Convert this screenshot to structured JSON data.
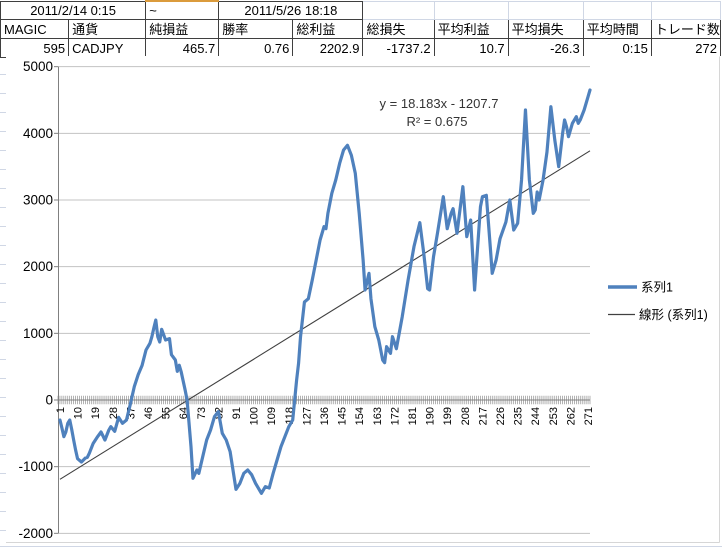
{
  "summary_table": {
    "period_start": "2011/2/14 0:15",
    "period_separator": "~",
    "period_end": "2011/5/26 18:18",
    "columns": [
      "MAGIC",
      "通貨",
      "純損益",
      "勝率",
      "総利益",
      "総損失",
      "平均利益",
      "平均損失",
      "平均時間",
      "トレード数"
    ],
    "values": [
      "595",
      "CADJPY",
      "465.7",
      "0.76",
      "2202.9",
      "-1737.2",
      "10.7",
      "-26.3",
      "0:15",
      "272"
    ]
  },
  "chart_data": {
    "type": "line",
    "title": "",
    "xlabel": "",
    "ylabel": "",
    "ylim": [
      -2000,
      5000
    ],
    "y_tick_step": 1000,
    "x_count": 272,
    "x_tick_labels": [
      1,
      10,
      19,
      28,
      37,
      46,
      55,
      64,
      73,
      82,
      91,
      100,
      109,
      118,
      127,
      136,
      145,
      154,
      163,
      172,
      181,
      190,
      199,
      208,
      217,
      226,
      235,
      244,
      253,
      262,
      271
    ],
    "grid": "horizontal",
    "legend_position": "right",
    "legend": [
      "系列1",
      "線形 (系列1)"
    ],
    "series": [
      {
        "name": "系列1",
        "color": "#4f81bd",
        "note": "cumulative profit curve, values estimated from gridlines at anchor trades",
        "points": [
          [
            1,
            -300
          ],
          [
            2,
            -420
          ],
          [
            3,
            -550
          ],
          [
            4,
            -480
          ],
          [
            5,
            -350
          ],
          [
            6,
            -300
          ],
          [
            7,
            -440
          ],
          [
            8,
            -600
          ],
          [
            9,
            -750
          ],
          [
            10,
            -880
          ],
          [
            12,
            -930
          ],
          [
            14,
            -870
          ],
          [
            15,
            -860
          ],
          [
            16,
            -800
          ],
          [
            18,
            -650
          ],
          [
            20,
            -560
          ],
          [
            22,
            -480
          ],
          [
            24,
            -600
          ],
          [
            26,
            -450
          ],
          [
            27,
            -400
          ],
          [
            29,
            -470
          ],
          [
            31,
            -260
          ],
          [
            33,
            -350
          ],
          [
            35,
            -300
          ],
          [
            36,
            -180
          ],
          [
            37,
            -60
          ],
          [
            39,
            200
          ],
          [
            41,
            380
          ],
          [
            43,
            520
          ],
          [
            45,
            750
          ],
          [
            47,
            850
          ],
          [
            48,
            950
          ],
          [
            49,
            1080
          ],
          [
            50,
            1200
          ],
          [
            51,
            950
          ],
          [
            52,
            870
          ],
          [
            53,
            1060
          ],
          [
            55,
            900
          ],
          [
            57,
            920
          ],
          [
            58,
            680
          ],
          [
            60,
            600
          ],
          [
            61,
            430
          ],
          [
            62,
            520
          ],
          [
            63,
            420
          ],
          [
            65,
            150
          ],
          [
            66,
            0
          ],
          [
            68,
            -700
          ],
          [
            69,
            -1175
          ],
          [
            71,
            -1050
          ],
          [
            72,
            -1100
          ],
          [
            74,
            -850
          ],
          [
            76,
            -600
          ],
          [
            78,
            -450
          ],
          [
            80,
            -250
          ],
          [
            82,
            -175
          ],
          [
            84,
            -500
          ],
          [
            86,
            -600
          ],
          [
            88,
            -775
          ],
          [
            91,
            -1340
          ],
          [
            93,
            -1250
          ],
          [
            95,
            -1100
          ],
          [
            97,
            -1050
          ],
          [
            99,
            -1120
          ],
          [
            101,
            -1250
          ],
          [
            104,
            -1400
          ],
          [
            106,
            -1300
          ],
          [
            108,
            -1320
          ],
          [
            110,
            -1100
          ],
          [
            112,
            -900
          ],
          [
            114,
            -700
          ],
          [
            116,
            -550
          ],
          [
            118,
            -400
          ],
          [
            120,
            -300
          ],
          [
            121,
            0
          ],
          [
            122,
            300
          ],
          [
            123,
            550
          ],
          [
            124,
            950
          ],
          [
            126,
            1470
          ],
          [
            128,
            1520
          ],
          [
            130,
            1800
          ],
          [
            131,
            1950
          ],
          [
            134,
            2400
          ],
          [
            136,
            2600
          ],
          [
            137,
            2570
          ],
          [
            138,
            2800
          ],
          [
            140,
            3100
          ],
          [
            142,
            3300
          ],
          [
            144,
            3550
          ],
          [
            146,
            3750
          ],
          [
            148,
            3820
          ],
          [
            150,
            3670
          ],
          [
            152,
            3400
          ],
          [
            154,
            2800
          ],
          [
            156,
            2100
          ],
          [
            157,
            1650
          ],
          [
            159,
            1900
          ],
          [
            160,
            1520
          ],
          [
            162,
            1100
          ],
          [
            164,
            900
          ],
          [
            166,
            600
          ],
          [
            167,
            560
          ],
          [
            168,
            800
          ],
          [
            170,
            700
          ],
          [
            171,
            950
          ],
          [
            173,
            770
          ],
          [
            176,
            1250
          ],
          [
            179,
            1800
          ],
          [
            182,
            2300
          ],
          [
            185,
            2660
          ],
          [
            187,
            2200
          ],
          [
            189,
            1670
          ],
          [
            190,
            1650
          ],
          [
            192,
            2150
          ],
          [
            194,
            2500
          ],
          [
            197,
            3050
          ],
          [
            199,
            2570
          ],
          [
            201,
            2800
          ],
          [
            202,
            2870
          ],
          [
            204,
            2500
          ],
          [
            207,
            3200
          ],
          [
            209,
            2450
          ],
          [
            211,
            2700
          ],
          [
            213,
            1650
          ],
          [
            216,
            2900
          ],
          [
            217,
            3050
          ],
          [
            219,
            3070
          ],
          [
            221,
            2300
          ],
          [
            222,
            1900
          ],
          [
            224,
            2100
          ],
          [
            226,
            2420
          ],
          [
            229,
            2670
          ],
          [
            231,
            3000
          ],
          [
            233,
            2550
          ],
          [
            235,
            2650
          ],
          [
            237,
            3300
          ],
          [
            239,
            4350
          ],
          [
            241,
            3300
          ],
          [
            243,
            2800
          ],
          [
            244,
            2850
          ],
          [
            245,
            3120
          ],
          [
            246,
            3000
          ],
          [
            248,
            3300
          ],
          [
            250,
            3720
          ],
          [
            252,
            4400
          ],
          [
            254,
            3900
          ],
          [
            256,
            3500
          ],
          [
            258,
            4000
          ],
          [
            259,
            4200
          ],
          [
            260,
            4100
          ],
          [
            261,
            3950
          ],
          [
            263,
            4150
          ],
          [
            265,
            4250
          ],
          [
            266,
            4150
          ],
          [
            267,
            4200
          ],
          [
            269,
            4350
          ],
          [
            271,
            4550
          ],
          [
            272,
            4650
          ]
        ]
      }
    ],
    "trendline": {
      "name": "線形 (系列1)",
      "equation": "y = 18.183x - 1207.7",
      "r_squared": "R² = 0.675",
      "slope": 18.183,
      "intercept": -1207.7,
      "color": "#404040"
    }
  },
  "colors": {
    "series_blue": "#4f81bd",
    "trendline": "#404040",
    "plot_gridline": "#c3c3c3",
    "axis": "#808080",
    "table_border": "#3f3f3f",
    "sheet_gridline": "#d0d7e5",
    "selected_cell_border": "#db9b3c",
    "chart_frame": "#d6d6d6",
    "text": "#000000"
  }
}
